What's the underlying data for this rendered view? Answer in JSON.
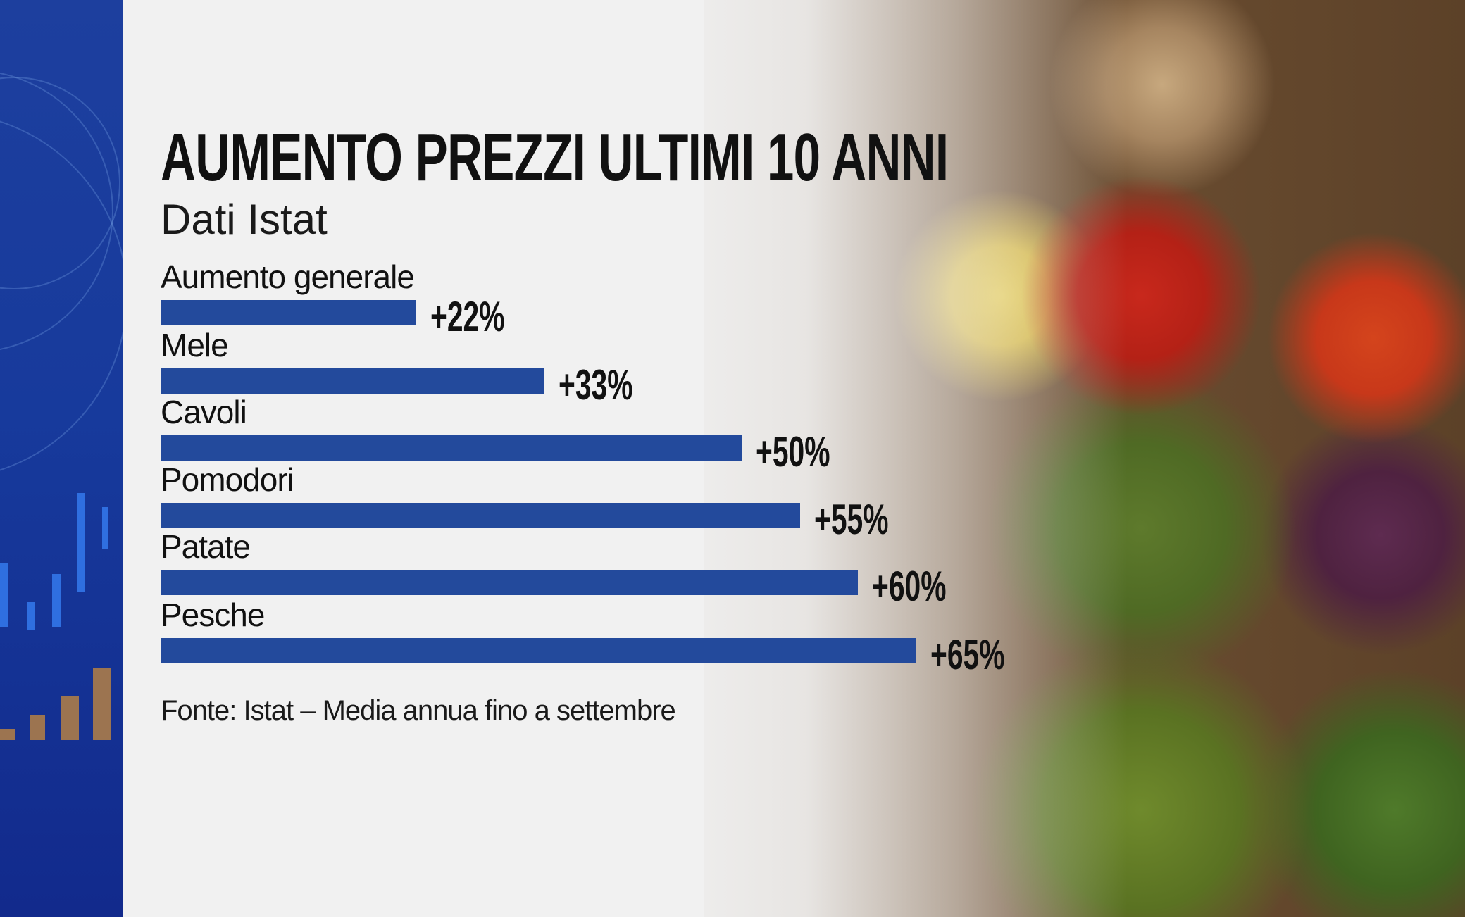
{
  "chart_data": {
    "type": "bar",
    "orientation": "horizontal",
    "title": "AUMENTO PREZZI ULTIMI 10 ANNI",
    "subtitle": "Dati Istat",
    "categories": [
      "Aumento generale",
      "Mele",
      "Cavoli",
      "Pomodori",
      "Patate",
      "Pesche"
    ],
    "values": [
      22,
      33,
      50,
      55,
      60,
      65
    ],
    "value_labels": [
      "+22%",
      "+33%",
      "+50%",
      "+55%",
      "+60%",
      "+65%"
    ],
    "unit": "%",
    "xlim": [
      0,
      65
    ],
    "grid": false,
    "bar_color": "#234a9c",
    "source": "Fonte: Istat – Media annua fino a settembre"
  }
}
